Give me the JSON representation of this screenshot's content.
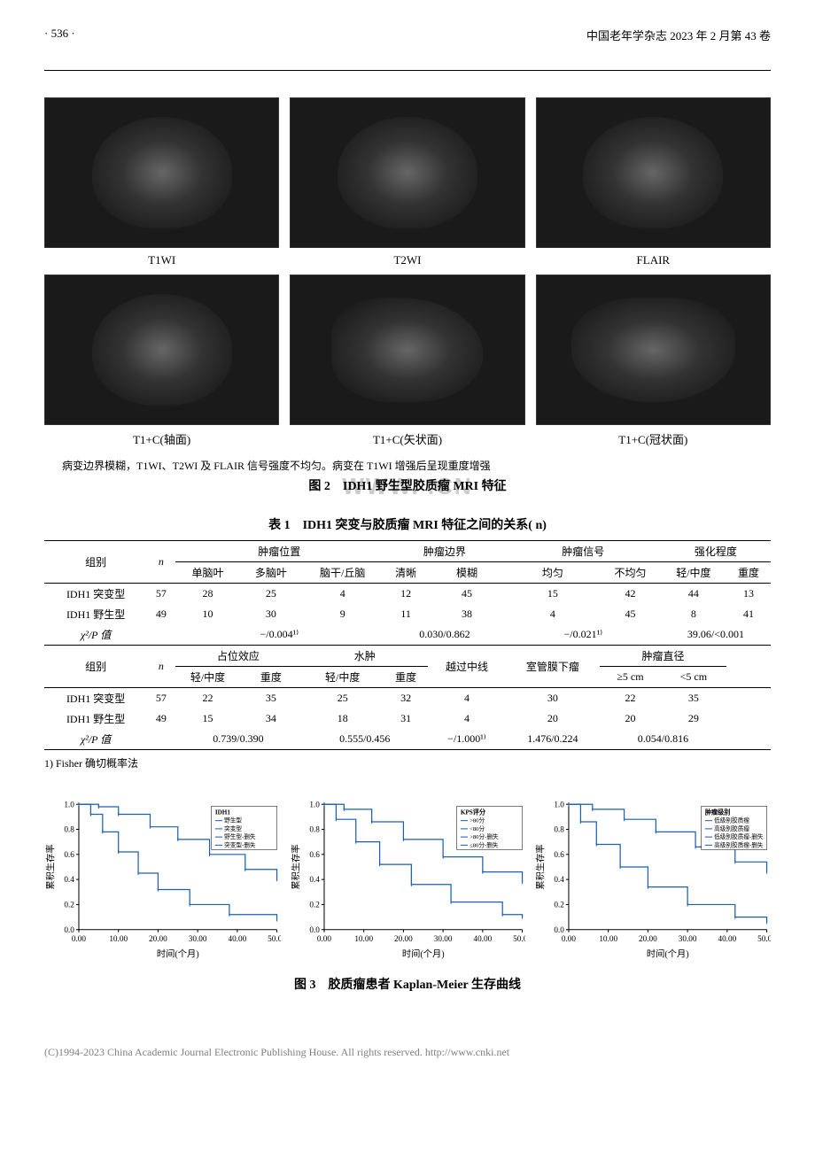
{
  "header": {
    "page_number": "· 536 ·",
    "journal": "中国老年学杂志 2023 年 2 月第 43 卷"
  },
  "figure2": {
    "row1_labels": [
      "T1WI",
      "T2WI",
      "FLAIR"
    ],
    "row2_labels": [
      "T1+C(轴面)",
      "T1+C(矢状面)",
      "T1+C(冠状面)"
    ],
    "caption_line": "病变边界模糊，T1WI、T2WI 及 FLAIR 信号强度不均匀。病变在 T1WI 增强后呈现重度增强",
    "title": "图 2　IDH1 野生型胶质瘤 MRI 特征",
    "watermark": "WWW.                     .CN"
  },
  "table1": {
    "title": "表 1　IDH1 突变与胶质瘤 MRI 特征之间的关系( n)",
    "header_group_col": "组别",
    "header_n_col": "n",
    "section_a": {
      "groups": [
        "肿瘤位置",
        "肿瘤边界",
        "肿瘤信号",
        "强化程度"
      ],
      "subcols": [
        [
          "单脑叶",
          "多脑叶",
          "脑干/丘脑"
        ],
        [
          "清晰",
          "模糊"
        ],
        [
          "均匀",
          "不均匀"
        ],
        [
          "轻/中度",
          "重度"
        ]
      ],
      "rows": [
        {
          "label": "IDH1 突变型",
          "n": "57",
          "vals": [
            "28",
            "25",
            "4",
            "12",
            "45",
            "15",
            "42",
            "44",
            "13"
          ]
        },
        {
          "label": "IDH1 野生型",
          "n": "49",
          "vals": [
            "10",
            "30",
            "9",
            "11",
            "38",
            "4",
            "45",
            "8",
            "41"
          ]
        },
        {
          "label": "χ²/P 值",
          "n": "",
          "vals_merged": [
            "−/0.004¹⁾",
            "0.030/0.862",
            "−/0.021¹⁾",
            "39.06/<0.001"
          ]
        }
      ]
    },
    "section_b": {
      "groups": [
        "占位效应",
        "水肿",
        "越过中线",
        "室管膜下瘤",
        "肿瘤直径"
      ],
      "subcols": [
        [
          "轻/中度",
          "重度"
        ],
        [
          "轻/中度",
          "重度"
        ],
        [],
        [],
        [
          "≥5 cm",
          "<5 cm"
        ]
      ],
      "rows": [
        {
          "label": "IDH1 突变型",
          "n": "57",
          "vals": [
            "22",
            "35",
            "25",
            "32",
            "4",
            "30",
            "22",
            "35"
          ]
        },
        {
          "label": "IDH1 野生型",
          "n": "49",
          "vals": [
            "15",
            "34",
            "18",
            "31",
            "4",
            "20",
            "20",
            "29"
          ]
        },
        {
          "label": "χ²/P 值",
          "n": "",
          "vals_merged": [
            "0.739/0.390",
            "0.555/0.456",
            "−/1.000¹⁾",
            "1.476/0.224",
            "0.054/0.816"
          ]
        }
      ]
    },
    "note": "1) Fisher 确切概率法"
  },
  "figure3": {
    "title": "图 3　胶质瘤患者 Kaplan-Meier 生存曲线",
    "charts": [
      {
        "xlabel": "时间(个月)",
        "ylabel": "累积生存率",
        "legend_title": "IDH1",
        "legend": [
          "野生型",
          "突变型",
          "野生型-删失",
          "突变型-删失"
        ],
        "xlim": [
          0,
          50
        ],
        "ylim": [
          0,
          1
        ],
        "xtick_step": 10,
        "ytick_step": 0.2,
        "line_color": "#1a5fb4",
        "mark_color": "#1a5fb4",
        "series": [
          {
            "pts": [
              [
                0,
                1.0
              ],
              [
                3,
                0.92
              ],
              [
                6,
                0.78
              ],
              [
                10,
                0.62
              ],
              [
                15,
                0.45
              ],
              [
                20,
                0.32
              ],
              [
                28,
                0.2
              ],
              [
                38,
                0.12
              ],
              [
                50,
                0.08
              ]
            ]
          },
          {
            "pts": [
              [
                0,
                1.0
              ],
              [
                5,
                0.98
              ],
              [
                10,
                0.92
              ],
              [
                18,
                0.82
              ],
              [
                25,
                0.72
              ],
              [
                33,
                0.6
              ],
              [
                42,
                0.48
              ],
              [
                50,
                0.4
              ]
            ]
          }
        ]
      },
      {
        "xlabel": "时间(个月)",
        "ylabel": "累积生存率",
        "legend_title": "KPS评分",
        "legend": [
          ">80分",
          "<80分",
          ">80分-删失",
          "≤80分-删失"
        ],
        "xlim": [
          0,
          50
        ],
        "ylim": [
          0,
          1
        ],
        "xtick_step": 10,
        "ytick_step": 0.2,
        "line_color": "#1a5fb4",
        "mark_color": "#1a5fb4",
        "series": [
          {
            "pts": [
              [
                0,
                1.0
              ],
              [
                5,
                0.96
              ],
              [
                12,
                0.86
              ],
              [
                20,
                0.72
              ],
              [
                30,
                0.58
              ],
              [
                40,
                0.46
              ],
              [
                50,
                0.38
              ]
            ]
          },
          {
            "pts": [
              [
                0,
                1.0
              ],
              [
                3,
                0.88
              ],
              [
                8,
                0.7
              ],
              [
                14,
                0.52
              ],
              [
                22,
                0.36
              ],
              [
                32,
                0.22
              ],
              [
                45,
                0.12
              ],
              [
                50,
                0.1
              ]
            ]
          }
        ]
      },
      {
        "xlabel": "时间(个月)",
        "ylabel": "累积生存率",
        "legend_title": "肿瘤级别",
        "legend": [
          "低级别胶质瘤",
          "高级别胶质瘤",
          "低级别胶质瘤-删失",
          "高级别胶质瘤-删失"
        ],
        "xlim": [
          0,
          50
        ],
        "ylim": [
          0,
          1
        ],
        "xtick_step": 10,
        "ytick_step": 0.2,
        "line_color": "#1a5fb4",
        "mark_color": "#1a5fb4",
        "series": [
          {
            "pts": [
              [
                0,
                1.0
              ],
              [
                6,
                0.96
              ],
              [
                14,
                0.88
              ],
              [
                22,
                0.78
              ],
              [
                32,
                0.66
              ],
              [
                42,
                0.54
              ],
              [
                50,
                0.46
              ]
            ]
          },
          {
            "pts": [
              [
                0,
                1.0
              ],
              [
                3,
                0.86
              ],
              [
                7,
                0.68
              ],
              [
                13,
                0.5
              ],
              [
                20,
                0.34
              ],
              [
                30,
                0.2
              ],
              [
                42,
                0.1
              ],
              [
                50,
                0.06
              ]
            ]
          }
        ]
      }
    ]
  },
  "footer": "(C)1994-2023 China Academic Journal Electronic Publishing House. All rights reserved.    http://www.cnki.net",
  "colors": {
    "text": "#000000",
    "axis": "#000000",
    "line": "#1a5fb4",
    "watermark": "#cccccc",
    "footer": "#808080"
  }
}
